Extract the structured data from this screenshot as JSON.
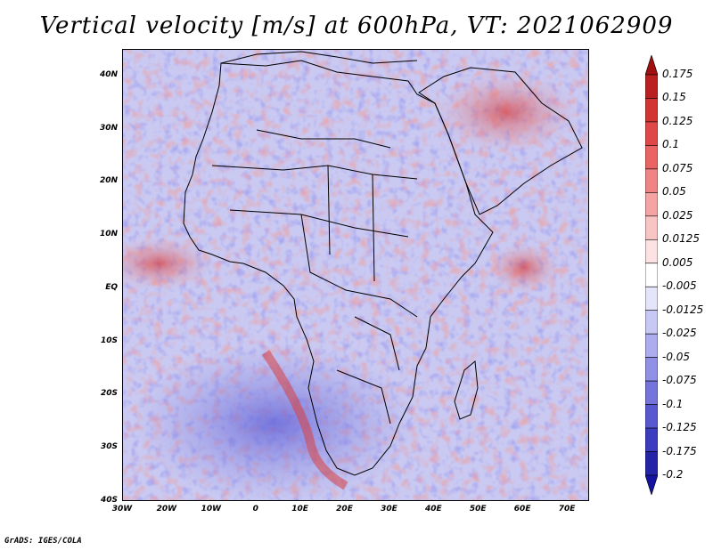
{
  "title": "Vertical velocity [m/s] at 600hPa, VT: 2021062909",
  "credit": "GrADS: IGES/COLA",
  "map": {
    "lat_range": [
      -40,
      45
    ],
    "lon_range": [
      -30,
      75
    ],
    "y_ticks": [
      "40N",
      "30N",
      "20N",
      "10N",
      "EQ",
      "10S",
      "20S",
      "30S",
      "40S"
    ],
    "y_tick_values": [
      40,
      30,
      20,
      10,
      0,
      -10,
      -20,
      -30,
      -40
    ],
    "x_ticks": [
      "30W",
      "20W",
      "10W",
      "0",
      "10E",
      "20E",
      "30E",
      "40E",
      "50E",
      "60E",
      "70E"
    ],
    "x_tick_values": [
      -30,
      -20,
      -10,
      0,
      10,
      20,
      30,
      40,
      50,
      60,
      70
    ]
  },
  "colorbar": {
    "labels": [
      "0.175",
      "0.15",
      "0.125",
      "0.1",
      "0.075",
      "0.05",
      "0.025",
      "0.0125",
      "0.005",
      "-0.005",
      "-0.0125",
      "-0.025",
      "-0.05",
      "-0.075",
      "-0.1",
      "-0.125",
      "-0.175",
      "-0.2"
    ],
    "colors": [
      "#a01010",
      "#bb2020",
      "#d23434",
      "#e04848",
      "#ea6464",
      "#f08484",
      "#f5a3a3",
      "#f9c4c4",
      "#fce2e2",
      "#ffffff",
      "#e4e4fa",
      "#c8c8f4",
      "#acacee",
      "#9090e6",
      "#7474dc",
      "#5858d0",
      "#3c3cc0",
      "#2424a8",
      "#1414a0"
    ]
  }
}
